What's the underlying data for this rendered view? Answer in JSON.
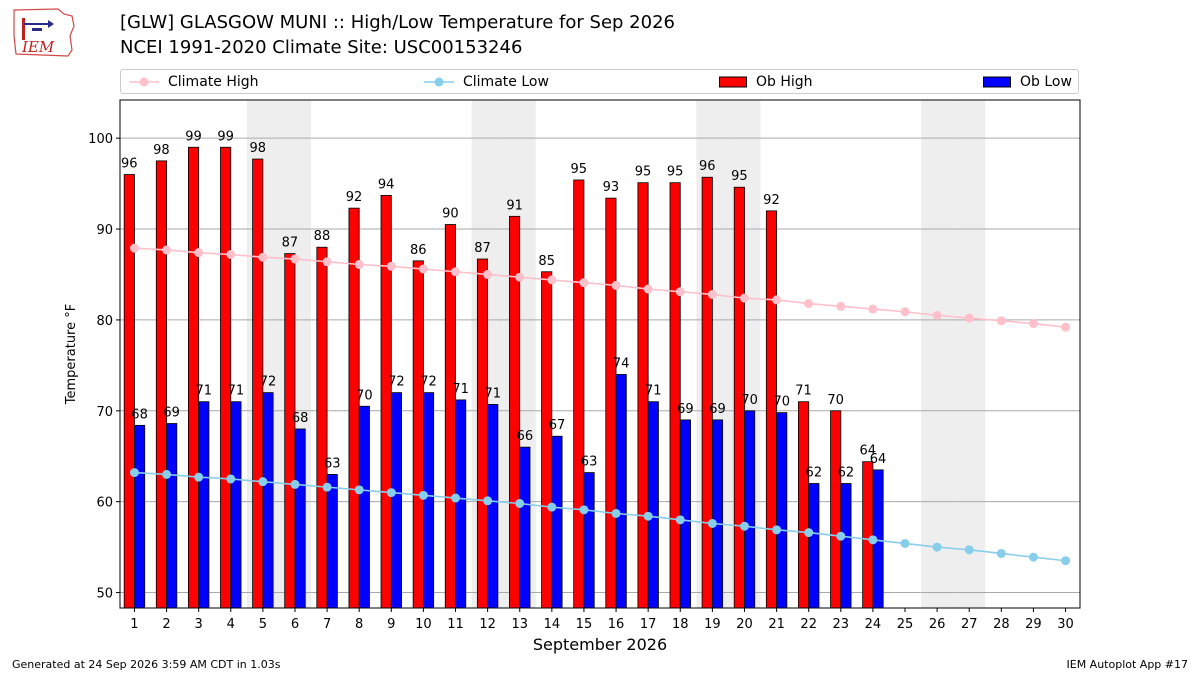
{
  "header": {
    "logo_text": "IEM",
    "title_line1": "[GLW] GLASGOW MUNI :: High/Low Temperature for Sep 2026",
    "title_line2": "NCEI 1991-2020 Climate Site: USC00153246"
  },
  "footer": {
    "generated": "Generated at 24 Sep 2026 3:59 AM CDT in 1.03s",
    "app": "IEM Autoplot App #17"
  },
  "colors": {
    "ob_high": "#ff0000",
    "ob_low": "#0000ff",
    "climate_high": "#ffc0cb",
    "climate_low": "#87ceeb",
    "weekend_band": "#eeeeee",
    "grid": "#aaaaaa"
  },
  "chart_data": {
    "type": "bar",
    "xlabel": "September 2026",
    "ylabel": "Temperature °F",
    "ylim": [
      48.3,
      104.2
    ],
    "xlim": [
      0.55,
      30.45
    ],
    "yticks": [
      50,
      60,
      70,
      80,
      90,
      100
    ],
    "grid": "horizontal",
    "legend_position": "top",
    "days": [
      1,
      2,
      3,
      4,
      5,
      6,
      7,
      8,
      9,
      10,
      11,
      12,
      13,
      14,
      15,
      16,
      17,
      18,
      19,
      20,
      21,
      22,
      23,
      24,
      25,
      26,
      27,
      28,
      29,
      30
    ],
    "shaded_days": [
      5,
      6,
      12,
      13,
      19,
      20,
      26,
      27
    ],
    "series": [
      {
        "name": "Climate High",
        "kind": "line",
        "values": [
          87.9,
          87.7,
          87.4,
          87.2,
          86.9,
          86.7,
          86.4,
          86.1,
          85.9,
          85.6,
          85.3,
          85.0,
          84.7,
          84.4,
          84.1,
          83.8,
          83.4,
          83.1,
          82.8,
          82.4,
          82.2,
          81.8,
          81.5,
          81.2,
          80.9,
          80.5,
          80.2,
          79.9,
          79.6,
          79.2
        ]
      },
      {
        "name": "Climate Low",
        "kind": "line",
        "values": [
          63.2,
          63.0,
          62.7,
          62.5,
          62.2,
          61.9,
          61.6,
          61.3,
          61.0,
          60.7,
          60.4,
          60.1,
          59.8,
          59.4,
          59.1,
          58.7,
          58.4,
          58.0,
          57.6,
          57.3,
          56.9,
          56.6,
          56.2,
          55.8,
          55.4,
          55.0,
          54.7,
          54.3,
          53.9,
          53.5
        ]
      },
      {
        "name": "Ob High",
        "kind": "bar",
        "values": [
          96,
          97.5,
          99,
          99,
          97.7,
          87.3,
          88,
          92.3,
          93.7,
          86.5,
          90.5,
          86.7,
          91.4,
          85.3,
          95.4,
          93.4,
          95.1,
          95.1,
          95.7,
          94.6,
          92,
          71,
          70,
          64.4
        ],
        "labels": [
          "96",
          "98",
          "99",
          "99",
          "98",
          "87",
          "88",
          "92",
          "94",
          "86",
          "90",
          "87",
          "91",
          "85",
          "95",
          "93",
          "95",
          "95",
          "96",
          "95",
          "92",
          "71",
          "70",
          "64"
        ]
      },
      {
        "name": "Ob Low",
        "kind": "bar",
        "values": [
          68.4,
          68.6,
          71,
          71,
          72,
          68,
          63,
          70.5,
          72,
          72,
          71.2,
          70.7,
          66,
          67.2,
          63.2,
          74,
          71,
          69,
          69,
          70,
          69.8,
          62,
          62,
          63.5
        ],
        "labels": [
          "68",
          "69",
          "71",
          "71",
          "72",
          "68",
          "63",
          "70",
          "72",
          "72",
          "71",
          "71",
          "66",
          "67",
          "63",
          "74",
          "71",
          "69",
          "69",
          "70",
          "70",
          "62",
          "62",
          "64"
        ]
      }
    ]
  }
}
